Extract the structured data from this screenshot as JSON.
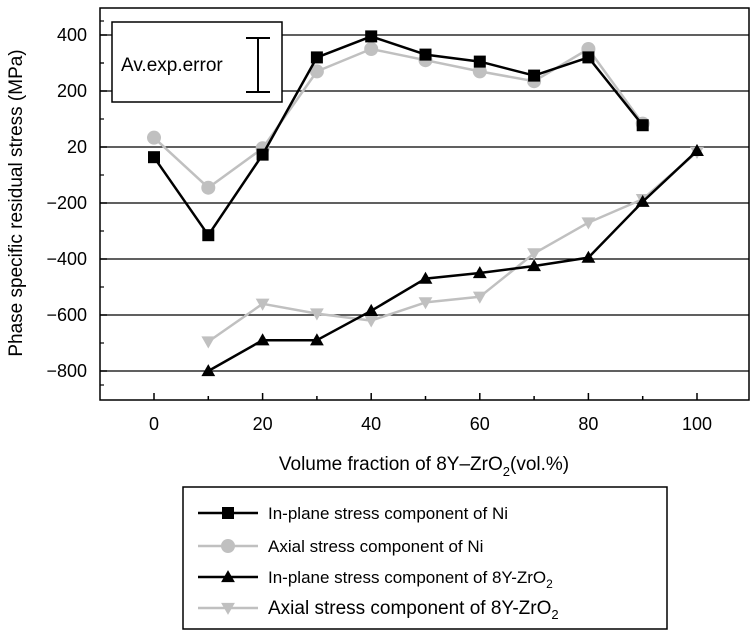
{
  "chart_data": {
    "type": "line",
    "xlabel": "Volume fraction of 8Y–ZrO",
    "xlabel_sub": "2",
    "xlabel_unit": "(vol.%)",
    "ylabel": "Phase specific residual stress (MPa)",
    "xlim": [
      -10,
      110
    ],
    "ylim": [
      -900,
      500
    ],
    "x_ticks": [
      0,
      20,
      40,
      60,
      80,
      100
    ],
    "x_tick_labels": [
      "0",
      "20",
      "40",
      "60",
      "80",
      "100"
    ],
    "y_ticks": [
      400,
      200,
      20,
      -200,
      -400,
      -600,
      -800
    ],
    "y_tick_labels": [
      "400",
      "200",
      "20",
      "−200",
      "−400",
      "−600",
      "−800"
    ],
    "grid": "horizontal",
    "annotation": "Av.exp.error",
    "series": [
      {
        "name": "In-plane stress component of Ni",
        "color": "#000000",
        "marker": "square",
        "x": [
          0,
          10,
          20,
          30,
          40,
          50,
          60,
          70,
          80,
          90
        ],
        "y": [
          -20,
          -315,
          -10,
          320,
          395,
          330,
          305,
          255,
          320,
          90
        ]
      },
      {
        "name": "Axial stress component of Ni",
        "color": "#c0c0c0",
        "marker": "circle",
        "x": [
          0,
          10,
          20,
          30,
          40,
          50,
          60,
          70,
          80,
          90
        ],
        "y": [
          50,
          -140,
          15,
          270,
          350,
          310,
          270,
          235,
          350,
          95
        ]
      },
      {
        "name": "In-plane stress component of 8Y-ZrO",
        "name_sub": "2",
        "color": "#000000",
        "marker": "triangle-up",
        "x": [
          10,
          20,
          30,
          40,
          50,
          60,
          70,
          80,
          90,
          100
        ],
        "y": [
          -800,
          -690,
          -690,
          -585,
          -470,
          -450,
          -425,
          -395,
          -195,
          5
        ]
      },
      {
        "name": "Axial stress component of 8Y-ZrO",
        "name_sub": "2",
        "color": "#c0c0c0",
        "marker": "triangle-down",
        "x": [
          10,
          20,
          30,
          40,
          50,
          60,
          70,
          80,
          90,
          100
        ],
        "y": [
          -695,
          -560,
          -595,
          -620,
          -555,
          -535,
          -380,
          -270,
          -185,
          0
        ]
      }
    ]
  }
}
